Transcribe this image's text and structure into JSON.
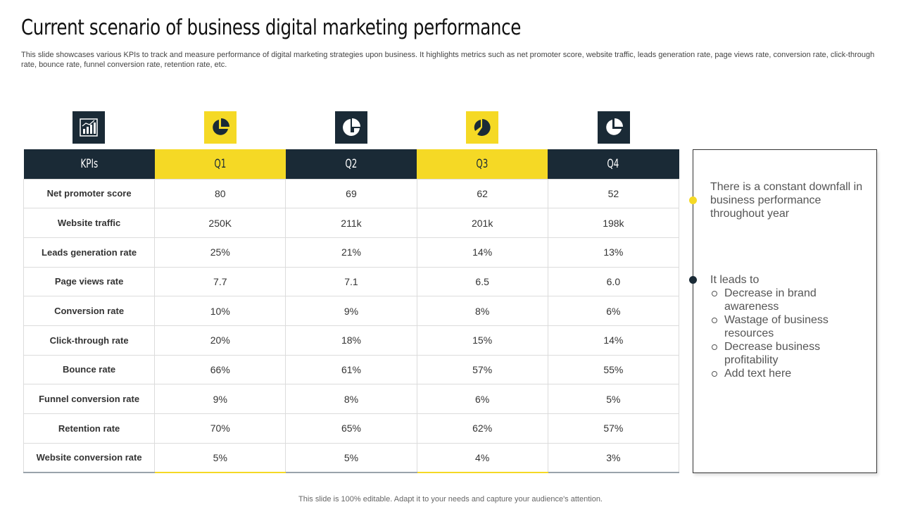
{
  "header": {
    "title": "Current scenario of business digital marketing performance",
    "subtitle": "This slide showcases various KPIs to track and measure performance of digital marketing strategies upon business. It highlights metrics such as net promoter score, website traffic, leads generation rate, page views rate, conversion rate, click-through rate, bounce rate, funnel conversion rate, retention rate, etc."
  },
  "icons": [
    "bar-chart-icon",
    "pie-chart-icon",
    "pie-chart-icon",
    "pie-chart-icon",
    "pie-chart-icon"
  ],
  "colors": {
    "dark": "#1a2a36",
    "yellow": "#f5d925"
  },
  "table": {
    "headers": [
      "KPIs",
      "Q1",
      "Q2",
      "Q3",
      "Q4"
    ],
    "rows": [
      {
        "kpi": "Net promoter score",
        "q1": "80",
        "q2": "69",
        "q3": "62",
        "q4": "52"
      },
      {
        "kpi": "Website traffic",
        "q1": "250K",
        "q2": "211k",
        "q3": "201k",
        "q4": "198k"
      },
      {
        "kpi": "Leads generation rate",
        "q1": "25%",
        "q2": "21%",
        "q3": "14%",
        "q4": "13%"
      },
      {
        "kpi": "Page views rate",
        "q1": "7.7",
        "q2": "7.1",
        "q3": "6.5",
        "q4": "6.0"
      },
      {
        "kpi": "Conversion  rate",
        "q1": "10%",
        "q2": "9%",
        "q3": "8%",
        "q4": "6%"
      },
      {
        "kpi": "Click-through  rate",
        "q1": "20%",
        "q2": "18%",
        "q3": "15%",
        "q4": "14%"
      },
      {
        "kpi": "Bounce rate",
        "q1": "66%",
        "q2": "61%",
        "q3": "57%",
        "q4": "55%"
      },
      {
        "kpi": "Funnel conversion  rate",
        "q1": "9%",
        "q2": "8%",
        "q3": "6%",
        "q4": "5%"
      },
      {
        "kpi": "Retention rate",
        "q1": "70%",
        "q2": "65%",
        "q3": "62%",
        "q4": "57%"
      },
      {
        "kpi": "Website conversion rate",
        "q1": "5%",
        "q2": "5%",
        "q3": "4%",
        "q4": "3%"
      }
    ]
  },
  "notes": {
    "first": "There is a constant downfall in business performance throughout  year",
    "second_intro": "It leads to",
    "second_items": [
      "Decrease in brand awareness",
      "Wastage of business resources",
      "Decrease business profitability",
      "Add text here"
    ]
  },
  "footer": "This slide is 100% editable.  Adapt it to your needs and capture your audience's attention."
}
